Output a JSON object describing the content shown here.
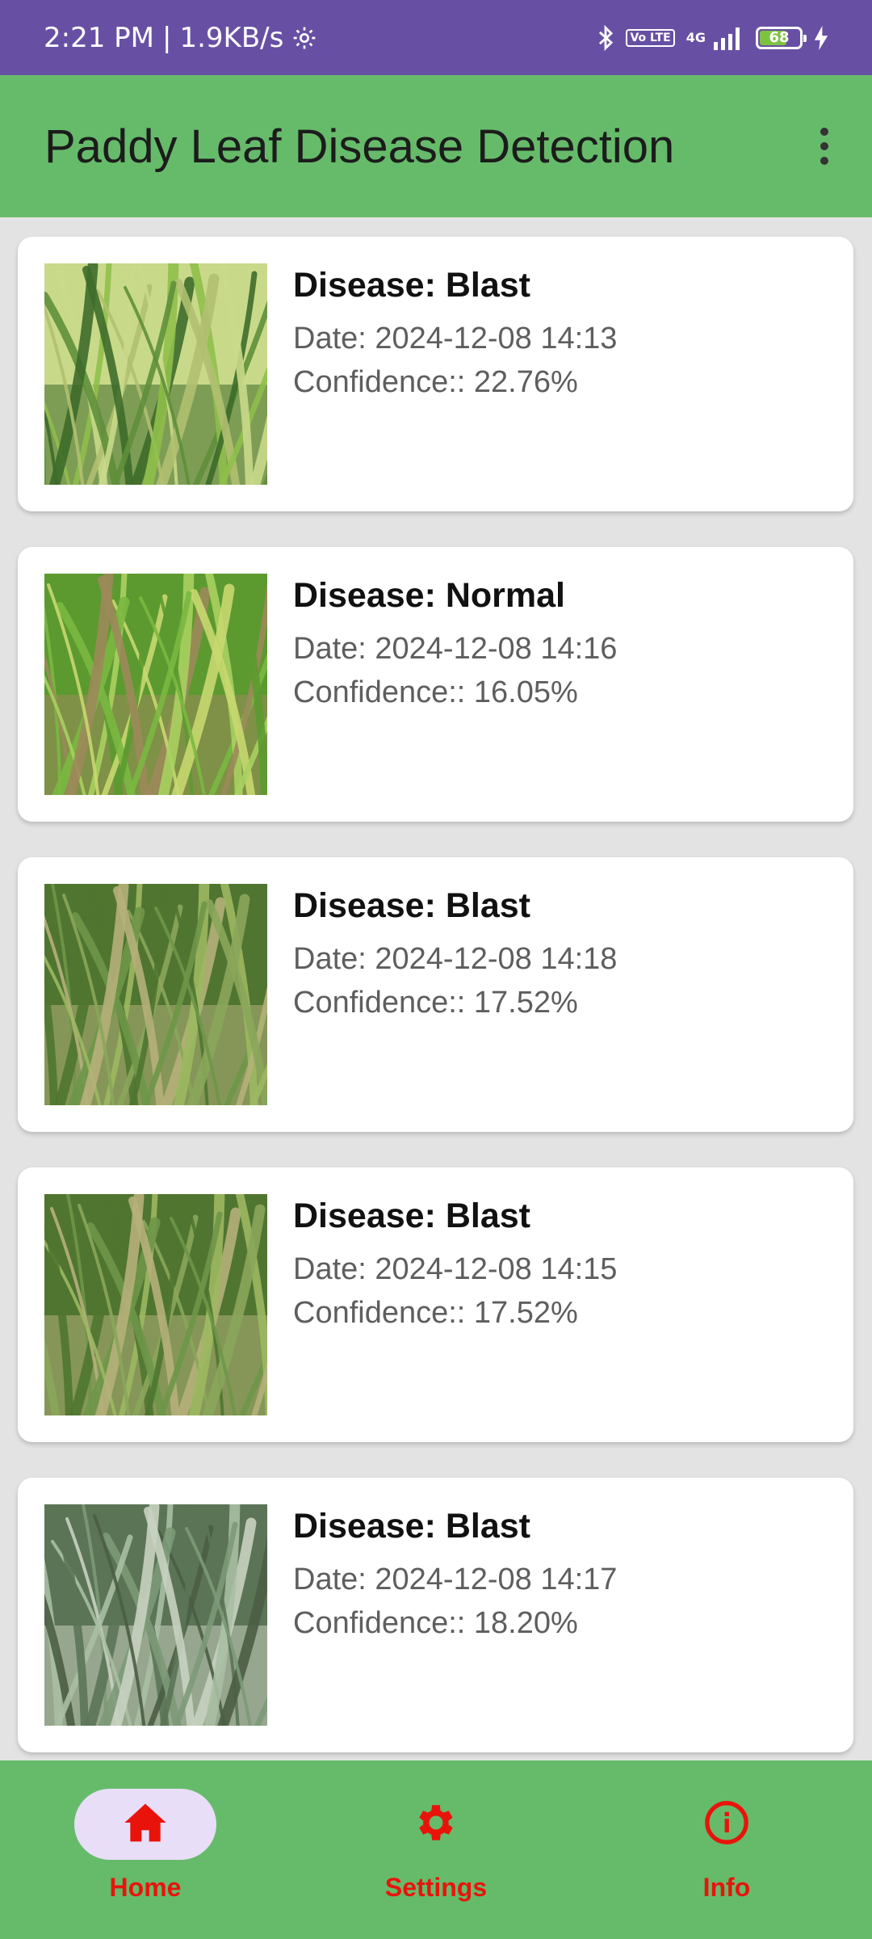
{
  "status_bar": {
    "time": "2:21 PM",
    "separator": "|",
    "speed": "1.9KB/s",
    "volte_label": "Vo LTE",
    "network_label": "4G",
    "battery_level": "68",
    "icons": [
      "gear-icon",
      "bluetooth-icon",
      "volte-icon",
      "signal-icon",
      "battery-icon",
      "charging-icon"
    ]
  },
  "app_bar": {
    "title": "Paddy Leaf Disease Detection",
    "menu_icon": "more-vert-icon"
  },
  "results": [
    {
      "disease": "Disease: Blast",
      "date": "Date: 2024-12-08 14:13",
      "confidence": "Confidence:: 22.76%",
      "image": "paddy-leaf-photo"
    },
    {
      "disease": "Disease: Normal",
      "date": "Date: 2024-12-08 14:16",
      "confidence": "Confidence:: 16.05%",
      "image": "paddy-leaf-photo"
    },
    {
      "disease": "Disease: Blast",
      "date": "Date: 2024-12-08 14:18",
      "confidence": "Confidence:: 17.52%",
      "image": "paddy-leaf-photo"
    },
    {
      "disease": "Disease: Blast",
      "date": "Date: 2024-12-08 14:15",
      "confidence": "Confidence:: 17.52%",
      "image": "paddy-leaf-photo"
    },
    {
      "disease": "Disease: Blast",
      "date": "Date: 2024-12-08 14:17",
      "confidence": "Confidence:: 18.20%",
      "image": "paddy-leaf-photo"
    }
  ],
  "bottom_nav": {
    "items": [
      {
        "label": "Home",
        "icon": "home-icon",
        "active": true
      },
      {
        "label": "Settings",
        "icon": "gear-icon",
        "active": false
      },
      {
        "label": "Info",
        "icon": "info-icon",
        "active": false
      }
    ]
  },
  "colors": {
    "status_bar": "#6750a4",
    "app_bar": "#66bb6a",
    "nav_accent": "#e8140c",
    "nav_active_pill": "#e8def8",
    "background": "#e3e3e3"
  }
}
